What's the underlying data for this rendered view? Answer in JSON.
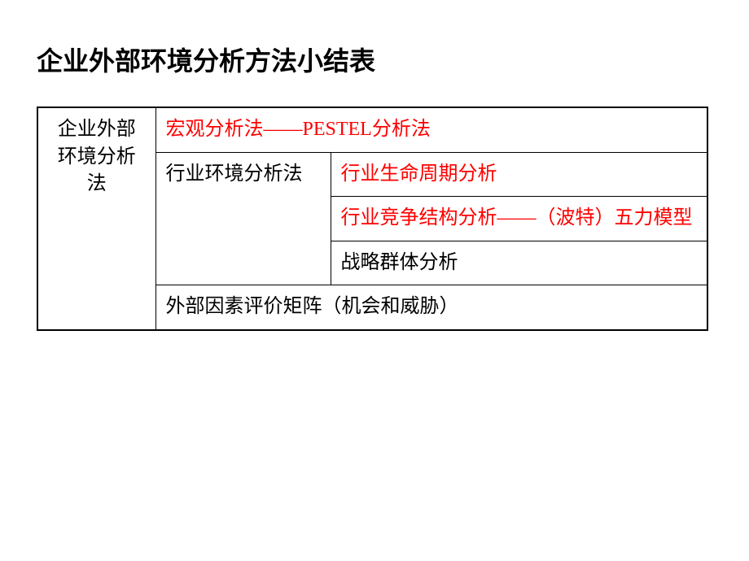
{
  "title": "企业外部环境分析方法小结表",
  "table": {
    "type": "table",
    "border_color": "#000000",
    "background_color": "#ffffff",
    "red_color": "#ff0000",
    "black_color": "#000000",
    "title_fontsize": 32,
    "cell_fontsize": 24,
    "col1_label": "企业外部环境分析法",
    "row1_full": "宏观分析法——PESTEL分析法",
    "row2_col2": "行业环境分析法",
    "row2_col3": "行业生命周期分析",
    "row3_col3": "行业竞争结构分析——（波特）五力模型",
    "row4_col3": "战略群体分析",
    "row5_full": "外部因素评价矩阵（机会和威胁）",
    "columns_width": [
      145,
      215,
      465
    ]
  }
}
